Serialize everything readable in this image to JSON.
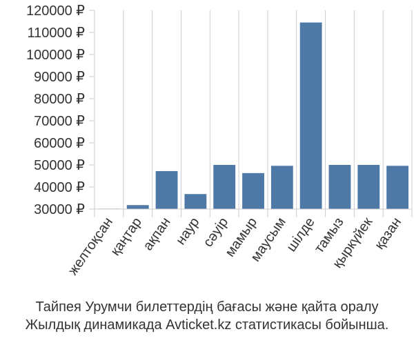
{
  "chart_data": {
    "type": "bar",
    "categories": [
      "желтоқсан",
      "қаңтар",
      "ақпан",
      "наур",
      "сәуір",
      "мамыр",
      "маусым",
      "шілде",
      "тамыз",
      "қыркүйек",
      "қазан"
    ],
    "values": [
      30200,
      31800,
      47200,
      36800,
      50000,
      46300,
      49600,
      114500,
      50000,
      50000,
      49600
    ],
    "ylim": [
      30000,
      120000
    ],
    "yticks": [
      30000,
      40000,
      50000,
      60000,
      70000,
      80000,
      90000,
      100000,
      110000,
      120000
    ],
    "ytick_labels": [
      "30000 ₽",
      "40000 ₽",
      "50000 ₽",
      "60000 ₽",
      "70000 ₽",
      "80000 ₽",
      "90000 ₽",
      "100000 ₽",
      "110000 ₽",
      "120000 ₽"
    ],
    "grid": "vertical",
    "bar_color": "#4e79a7"
  },
  "caption": {
    "line1": "Тайпея Урумчи билеттердің бағасы және қайта оралу",
    "line2": "Жылдық динамикада Avticket.kz статистикасы бойынша."
  }
}
